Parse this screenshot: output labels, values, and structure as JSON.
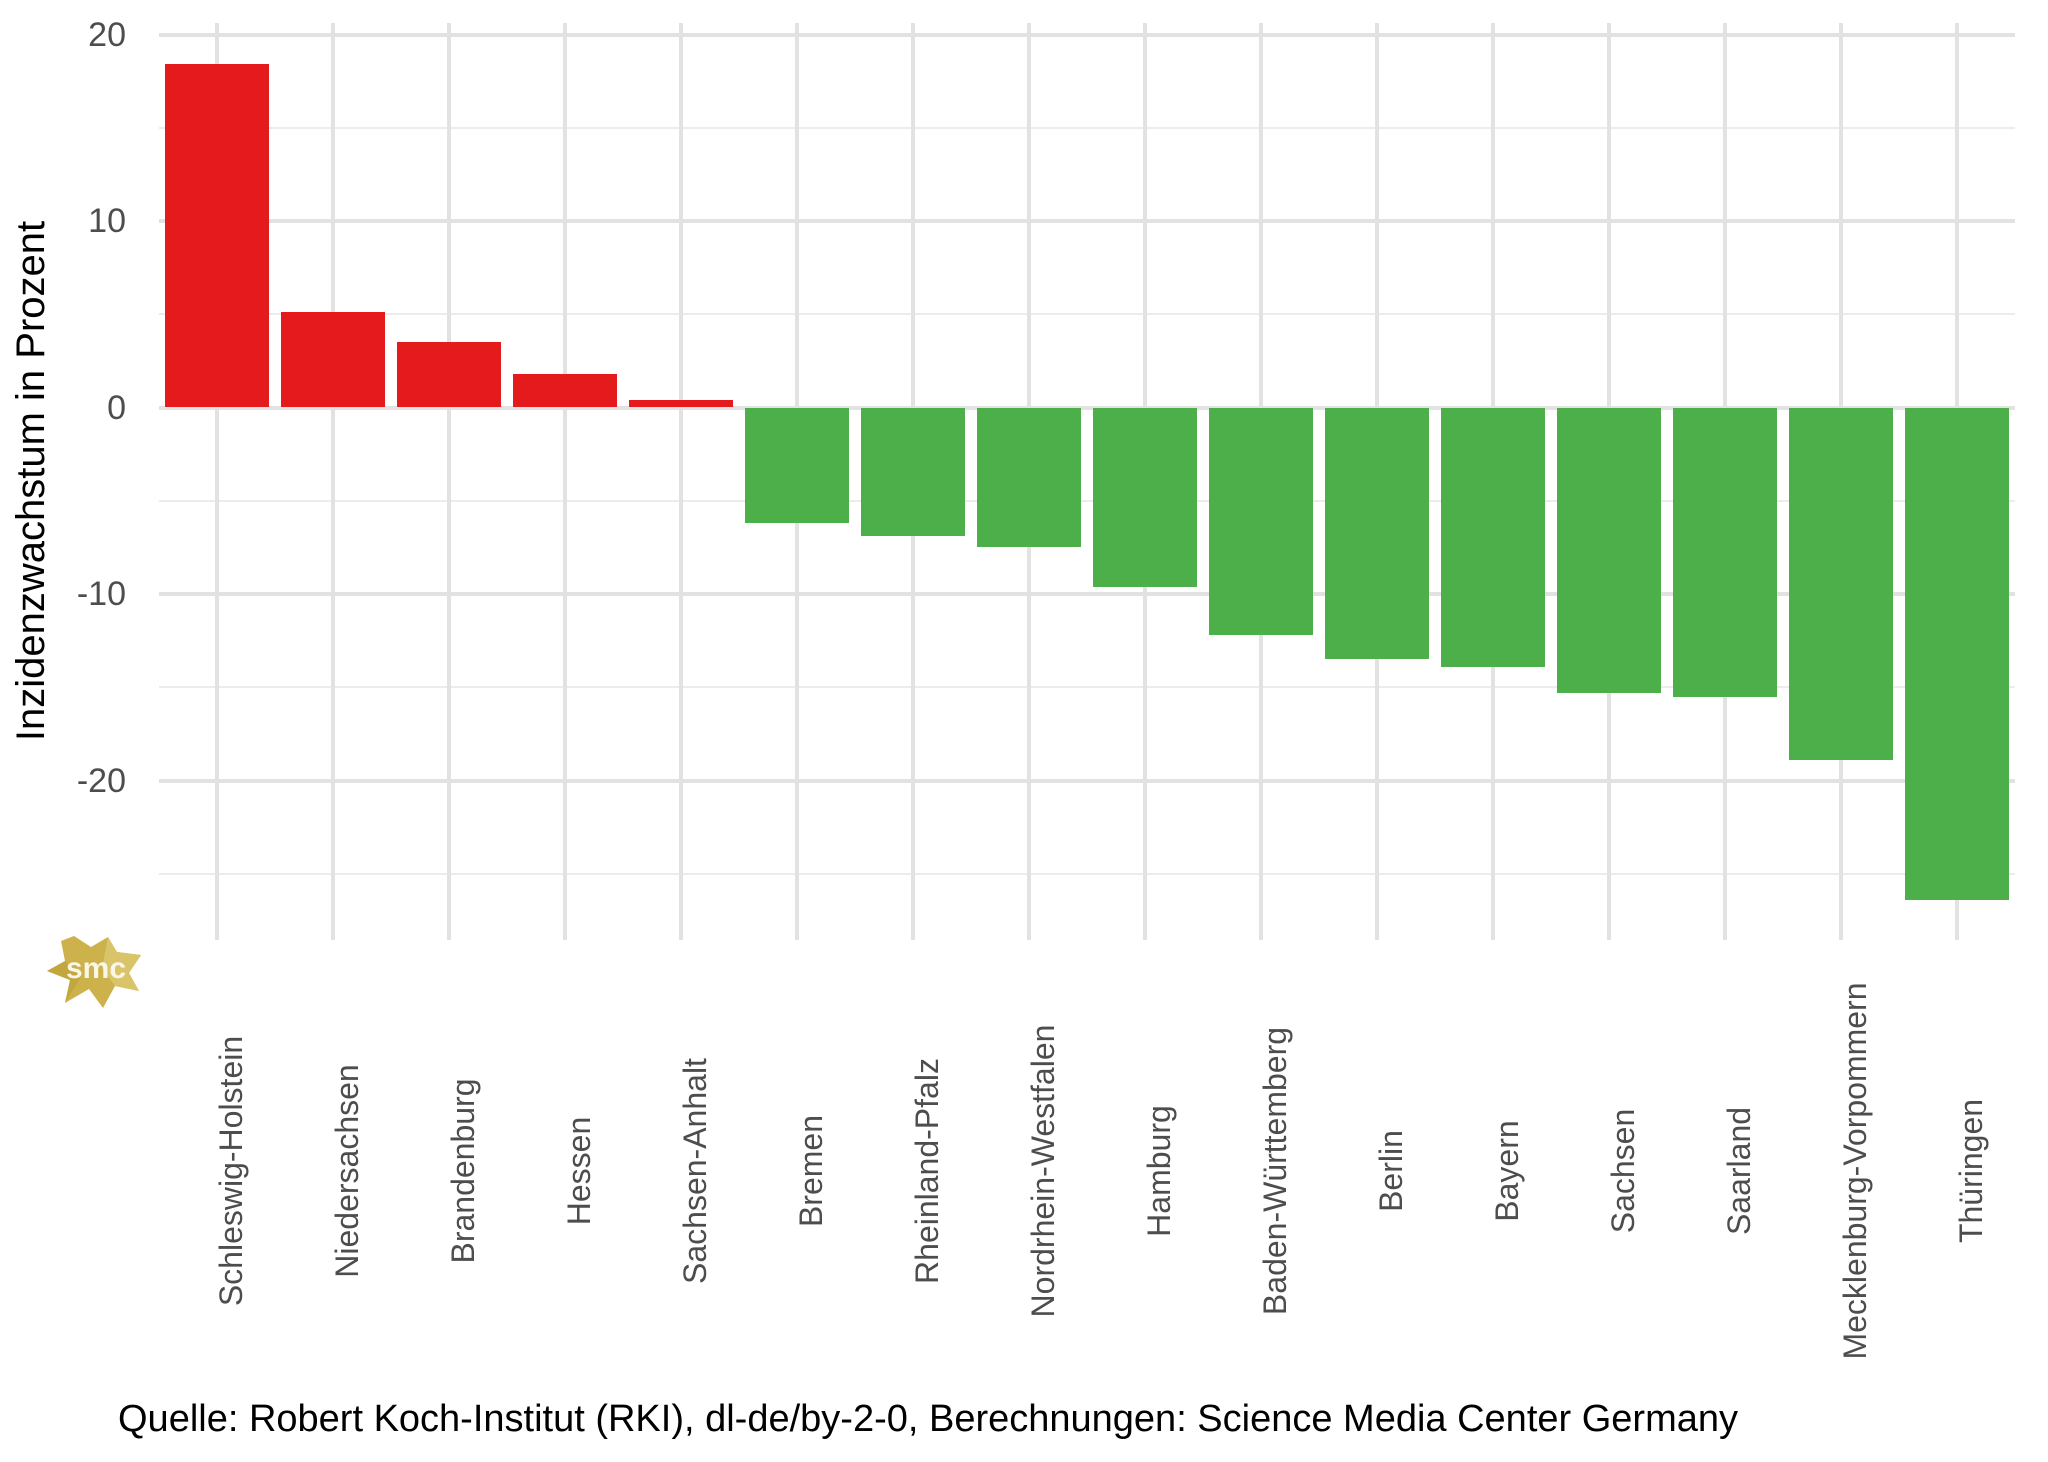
{
  "chart_data": {
    "type": "bar",
    "title": "",
    "xlabel": "",
    "ylabel": "Inzidenzwachstum in Prozent",
    "categories": [
      "Schleswig-Holstein",
      "Niedersachsen",
      "Brandenburg",
      "Hessen",
      "Sachsen-Anhalt",
      "Bremen",
      "Rheinland-Pfalz",
      "Nordrhein-Westfalen",
      "Hamburg",
      "Baden-Württemberg",
      "Berlin",
      "Bayern",
      "Sachsen",
      "Saarland",
      "Mecklenburg-Vorpommern",
      "Thüringen"
    ],
    "values": [
      18.4,
      5.1,
      3.5,
      1.8,
      0.4,
      -6.2,
      -6.9,
      -7.5,
      -9.6,
      -12.2,
      -13.5,
      -13.9,
      -15.3,
      -15.5,
      -18.9,
      -26.4
    ],
    "unit": "Prozent",
    "ylim": [
      -28.6,
      20.6
    ],
    "yticks_major": [
      20,
      10,
      0,
      -10,
      -20
    ],
    "yticks_minor": [
      15,
      5,
      -5,
      -15,
      -25
    ],
    "bar_positive_color": "#e41a1c",
    "bar_negative_color": "#4daf4a",
    "grid": "horizontal major+minor and vertical per category, light gray on white",
    "legend": "none"
  },
  "caption": {
    "text": "Quelle: Robert Koch-Institut (RKI), dl-de/by-2-0, Berechnungen: Science Media Center Germany"
  },
  "watermark": {
    "text": "smc",
    "color": "#cdb24b"
  },
  "colors": {
    "grid_major": "#e2e2e2",
    "grid_minor": "#ececec",
    "axis_text": "#4d4d4d",
    "title_text": "#000000",
    "background": "#ffffff"
  }
}
